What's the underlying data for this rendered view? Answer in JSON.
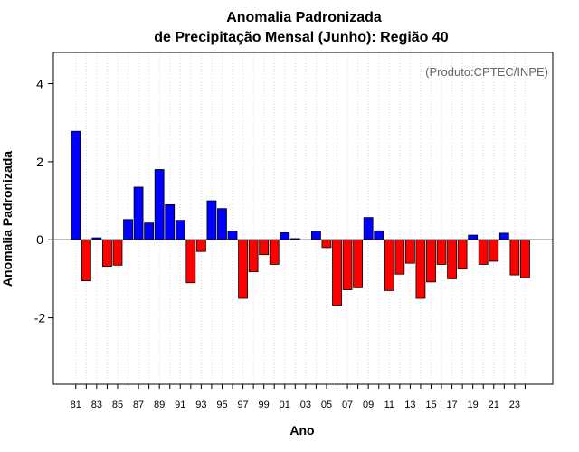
{
  "chart_data": {
    "type": "bar",
    "title": "Anomalia Padronizada",
    "subtitle": "de Precipitação Mensal (Junho): Região 40",
    "xlabel": "Ano",
    "ylabel": "Anomalia Padronizada",
    "credit": "(Produto:CPTEC/INPE)",
    "ylim": [
      -3.7,
      4.8
    ],
    "yticks": [
      4,
      2,
      0,
      -2
    ],
    "ytick_labels": [
      "4",
      "2",
      "0",
      "-2"
    ],
    "grid": true,
    "legend": "none",
    "positive_color": "#0000ff",
    "negative_color": "#ff0000",
    "categories": [
      "81",
      "82",
      "83",
      "84",
      "85",
      "86",
      "87",
      "88",
      "89",
      "90",
      "91",
      "92",
      "93",
      "94",
      "95",
      "96",
      "97",
      "98",
      "99",
      "00",
      "01",
      "02",
      "03",
      "04",
      "05",
      "06",
      "07",
      "08",
      "09",
      "10",
      "11",
      "12",
      "13",
      "14",
      "15",
      "16",
      "17",
      "18",
      "19",
      "20",
      "21",
      "22",
      "23",
      "24"
    ],
    "values": [
      2.78,
      -1.05,
      0.05,
      -0.68,
      -0.65,
      0.52,
      1.35,
      0.43,
      1.8,
      0.9,
      0.5,
      -1.1,
      -0.3,
      1.0,
      0.8,
      0.22,
      -1.5,
      -0.82,
      -0.38,
      -0.63,
      0.18,
      0.03,
      0.0,
      0.22,
      -0.2,
      -1.68,
      -1.28,
      -1.23,
      0.57,
      0.23,
      -1.3,
      -0.88,
      -0.6,
      -1.5,
      -1.08,
      -0.63,
      -1.0,
      -0.75,
      0.12,
      -0.63,
      -0.55,
      0.17,
      -0.9,
      -0.97
    ],
    "xtick_labels": [
      "81",
      "83",
      "85",
      "87",
      "89",
      "91",
      "93",
      "95",
      "97",
      "99",
      "01",
      "03",
      "05",
      "07",
      "09",
      "11",
      "13",
      "15",
      "17",
      "19",
      "21",
      "23"
    ]
  }
}
